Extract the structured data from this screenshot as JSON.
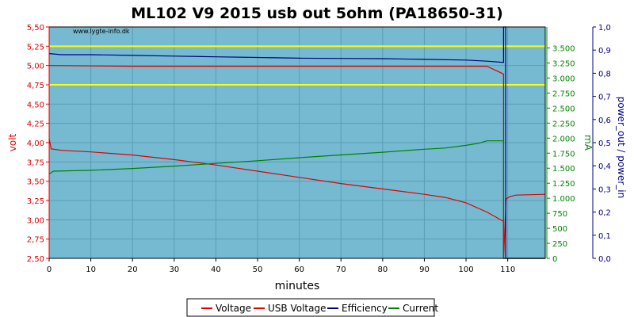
{
  "chart_data": {
    "type": "line",
    "title": "ML102 V9 2015 usb out 5ohm (PA18650-31)",
    "watermark": "www.lygte-info.dk",
    "xlabel": "minutes",
    "xlim": [
      0,
      119
    ],
    "xticks": [
      0,
      10,
      20,
      30,
      40,
      50,
      60,
      70,
      80,
      90,
      100,
      110
    ],
    "axes": {
      "volt": {
        "label": "volt",
        "color": "#e00000",
        "lim": [
          2.5,
          5.5
        ],
        "ticks": [
          "2,50",
          "2,75",
          "3,00",
          "3,25",
          "3,50",
          "3,75",
          "4,00",
          "4,25",
          "4,50",
          "4,75",
          "5,00",
          "5,25",
          "5,50"
        ],
        "tick_values": [
          2.5,
          2.75,
          3.0,
          3.25,
          3.5,
          3.75,
          4.0,
          4.25,
          4.5,
          4.75,
          5.0,
          5.25,
          5.5
        ]
      },
      "mA": {
        "label": "mA",
        "color": "#008000",
        "lim": [
          0,
          3850
        ],
        "ticks": [
          "0",
          "250",
          "500",
          "750",
          "1.000",
          "1.250",
          "1.500",
          "1.750",
          "2.000",
          "2.250",
          "2.500",
          "2.750",
          "3.000",
          "3.250",
          "3.500"
        ],
        "tick_values": [
          0,
          250,
          500,
          750,
          1000,
          1250,
          1500,
          1750,
          2000,
          2250,
          2500,
          2750,
          3000,
          3250,
          3500
        ]
      },
      "power": {
        "label": "power_out / power_in",
        "color": "#000080",
        "lim": [
          0,
          1.0
        ],
        "ticks": [
          "0,0",
          "0,1",
          "0,2",
          "0,3",
          "0,4",
          "0,5",
          "0,6",
          "0,7",
          "0,8",
          "0,9",
          "1,0"
        ],
        "tick_values": [
          0,
          0.1,
          0.2,
          0.3,
          0.4,
          0.5,
          0.6,
          0.7,
          0.8,
          0.9,
          1.0
        ]
      }
    },
    "reference_lines": {
      "axis": "volt",
      "values": [
        4.75,
        5.25
      ],
      "color": "#ffff00"
    },
    "series": [
      {
        "name": "Voltage",
        "color": "#e00000",
        "axis": "volt",
        "x": [
          0,
          0.5,
          3,
          10,
          20,
          30,
          40,
          50,
          60,
          70,
          80,
          90,
          95,
          100,
          105,
          108,
          109,
          109.01,
          109.6,
          110.5,
          112,
          119
        ],
        "y": [
          4.05,
          3.92,
          3.9,
          3.88,
          3.84,
          3.78,
          3.71,
          3.63,
          3.55,
          3.47,
          3.4,
          3.33,
          3.29,
          3.22,
          3.1,
          3.01,
          2.98,
          2.5,
          3.27,
          3.3,
          3.32,
          3.33
        ]
      },
      {
        "name": "USB Voltage",
        "color": "#e00000",
        "axis": "volt",
        "x": [
          0,
          10,
          20,
          30,
          50,
          70,
          90,
          104,
          105,
          109,
          109.01,
          109.5,
          110,
          119
        ],
        "y": [
          5.0,
          4.995,
          4.99,
          4.99,
          4.99,
          4.99,
          4.99,
          4.99,
          4.99,
          4.89,
          2.5,
          2.5,
          2.5,
          2.5
        ]
      },
      {
        "name": "Efficiency",
        "color": "#000080",
        "axis": "power",
        "x": [
          0,
          3,
          10,
          20,
          30,
          40,
          50,
          60,
          70,
          80,
          90,
          100,
          105,
          109,
          109.01,
          109.5,
          109.51,
          119
        ],
        "y": [
          0.885,
          0.88,
          0.88,
          0.877,
          0.874,
          0.871,
          0.868,
          0.865,
          0.864,
          0.863,
          0.86,
          0.857,
          0.852,
          0.847,
          1.0,
          1.0,
          0.0,
          0.0
        ]
      },
      {
        "name": "Current",
        "color": "#008000",
        "axis": "mA",
        "x": [
          0,
          1,
          10,
          20,
          30,
          40,
          50,
          60,
          70,
          80,
          90,
          95,
          100,
          103,
          105,
          109,
          109.01,
          119
        ],
        "y": [
          1400,
          1450,
          1465,
          1495,
          1535,
          1580,
          1625,
          1675,
          1720,
          1765,
          1815,
          1835,
          1880,
          1915,
          1955,
          1955,
          0,
          0
        ]
      }
    ],
    "grid": true,
    "legend": {
      "position": "bottom",
      "entries": [
        {
          "label": "Voltage",
          "color": "#e00000"
        },
        {
          "label": "USB Voltage",
          "color": "#e00000"
        },
        {
          "label": "Efficiency",
          "color": "#000080"
        },
        {
          "label": "Current",
          "color": "#008000"
        }
      ]
    }
  }
}
